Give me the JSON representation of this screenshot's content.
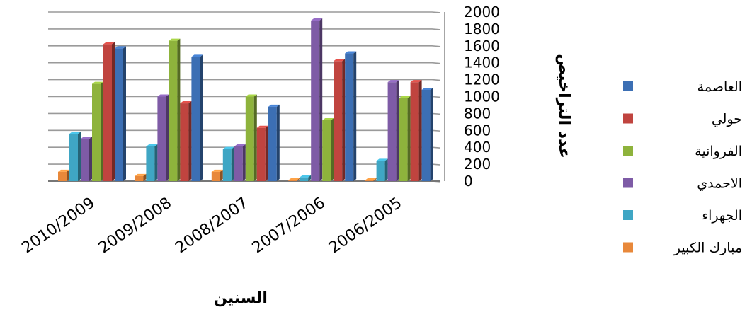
{
  "chart_data": {
    "type": "bar",
    "categories": [
      "2010/2009",
      "2009/2008",
      "2008/2007",
      "2007/2006",
      "2006/2005"
    ],
    "series": [
      {
        "name": "مبارك الكبير",
        "color": "#E8883A",
        "values": [
          110,
          60,
          110,
          10,
          10
        ]
      },
      {
        "name": "الجهراء",
        "color": "#3FA6C4",
        "values": [
          560,
          410,
          380,
          45,
          240
        ]
      },
      {
        "name": "الاحمدي",
        "color": "#7E5BA6",
        "values": [
          500,
          1000,
          410,
          1900,
          1170
        ]
      },
      {
        "name": "الفروانية",
        "color": "#8EB33C",
        "values": [
          1150,
          1660,
          1000,
          720,
          980
        ]
      },
      {
        "name": "حولي",
        "color": "#C0443F",
        "values": [
          1620,
          920,
          630,
          1420,
          1170
        ]
      },
      {
        "name": "العاصمة",
        "color": "#3C6FB4",
        "values": [
          1570,
          1470,
          880,
          1510,
          1080
        ]
      }
    ],
    "legend_order": [
      "العاصمة",
      "حولي",
      "الفروانية",
      "الاحمدي",
      "الجهراء",
      "مبارك الكبير"
    ],
    "yticks": [
      "0",
      "200",
      "400",
      "600",
      "800",
      "1000",
      "1200",
      "1400",
      "1600",
      "1800",
      "2000"
    ],
    "ylim": [
      0,
      2000
    ],
    "xlabel": "السنين",
    "ylabel": "عدد التراخيص",
    "title": "",
    "grid": true,
    "legend_position": "right",
    "axis_side": "right"
  }
}
